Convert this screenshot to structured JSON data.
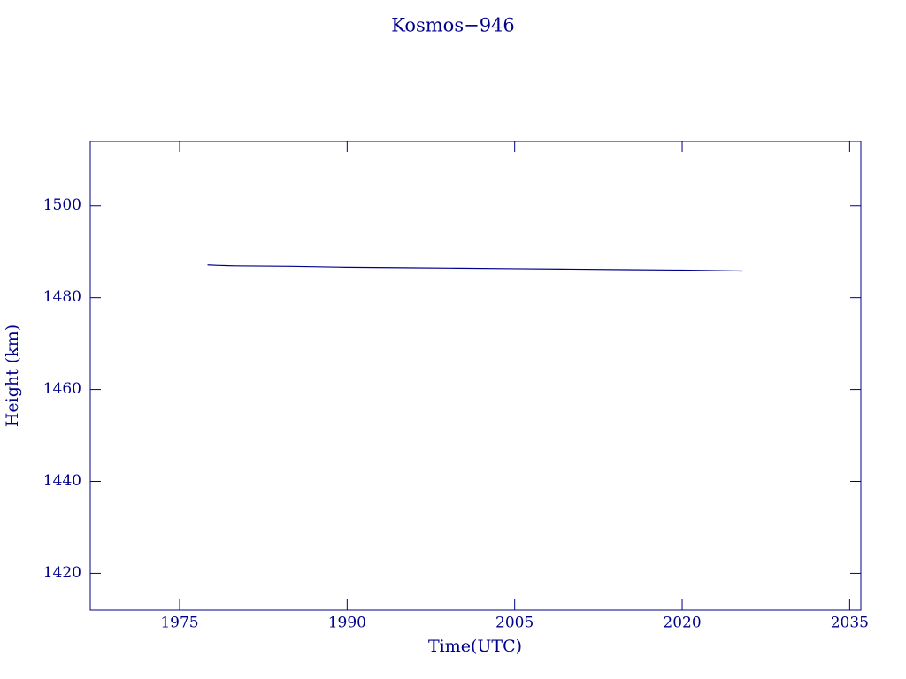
{
  "chart_data": {
    "type": "line",
    "title": "Kosmos−946",
    "x_label": "Time(UTC)",
    "y_label": "Height (km)",
    "x": [
      1977.5,
      1978.5,
      1980,
      1985,
      1990,
      1995,
      2000,
      2005,
      2010,
      2015,
      2020,
      2025.4
    ],
    "series": [
      {
        "name": "Kosmos−946",
        "color": "#00008b",
        "values": [
          1487.1,
          1487.0,
          1486.9,
          1486.8,
          1486.6,
          1486.5,
          1486.4,
          1486.3,
          1486.2,
          1486.1,
          1486.0,
          1485.8
        ]
      }
    ],
    "xlim": [
      1967,
      2036
    ],
    "xticks": [
      1975,
      1990,
      2005,
      2020,
      2035
    ],
    "ylim": [
      1412,
      1514
    ],
    "yticks": [
      1420,
      1440,
      1460,
      1480,
      1500
    ],
    "grid": false,
    "color": "#00008b"
  }
}
